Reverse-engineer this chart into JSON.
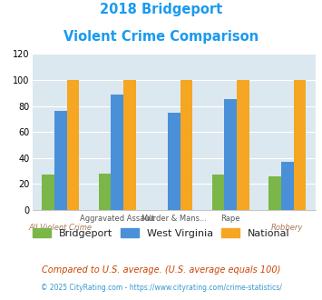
{
  "title_line1": "2018 Bridgeport",
  "title_line2": "Violent Crime Comparison",
  "title_color": "#1a9af0",
  "categories": [
    "All Violent Crime",
    "Aggravated Assault",
    "Murder & Mans...",
    "Rape",
    "Robbery"
  ],
  "series": {
    "Bridgeport": [
      27,
      28,
      0,
      27,
      26
    ],
    "West Virginia": [
      76,
      89,
      75,
      85,
      37
    ],
    "National": [
      100,
      100,
      100,
      100,
      100
    ]
  },
  "colors": {
    "Bridgeport": "#7ab648",
    "West Virginia": "#4a90d9",
    "National": "#f5a623"
  },
  "ylim": [
    0,
    120
  ],
  "yticks": [
    0,
    20,
    40,
    60,
    80,
    100,
    120
  ],
  "plot_bg": "#dce8f0",
  "top_labels": [
    "",
    "Aggravated Assault",
    "Murder & Mans...",
    "Rape",
    ""
  ],
  "bot_labels": [
    "All Violent Crime",
    "",
    "",
    "",
    "Robbery"
  ],
  "footer1": "Compared to U.S. average. (U.S. average equals 100)",
  "footer2": "© 2025 CityRating.com - https://www.cityrating.com/crime-statistics/",
  "footer1_color": "#cc4400",
  "footer2_color": "#3399cc",
  "legend_names": [
    "Bridgeport",
    "West Virginia",
    "National"
  ]
}
